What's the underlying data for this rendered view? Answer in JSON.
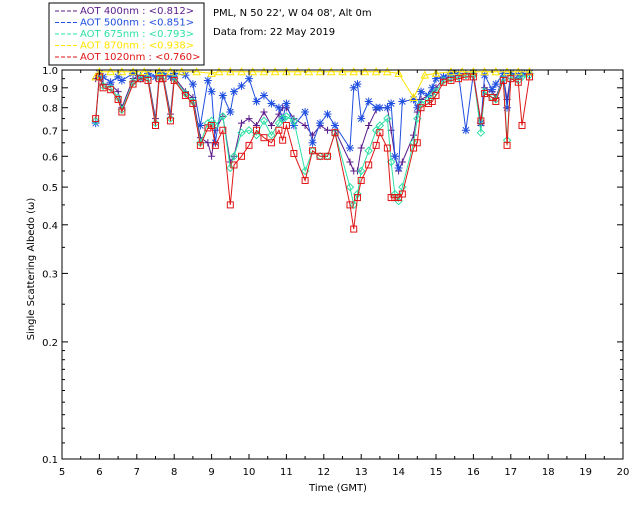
{
  "header": {
    "location": "PML, N 50 22', W 04 08', Alt 0m",
    "date": "Data from: 22 May 2019"
  },
  "chart_data": {
    "type": "line",
    "xlabel": "Time (GMT)",
    "ylabel": "Single Scattering Albedo (ω)",
    "xlim": [
      5,
      20
    ],
    "ylim": [
      0.1,
      1.0
    ],
    "y_scale": "log",
    "x_ticks": [
      "5",
      "6",
      "7",
      "8",
      "9",
      "10",
      "11",
      "12",
      "13",
      "14",
      "15",
      "16",
      "17",
      "18",
      "19",
      "20"
    ],
    "y_ticks": [
      "0.1",
      "0.2",
      "0.3",
      "0.4",
      "0.5",
      "0.6",
      "0.7",
      "0.8",
      "0.9",
      "1.0"
    ],
    "legend_position": "top-left",
    "series": [
      {
        "name": "AOT  400nm : <0.812>",
        "color": "#5a1b8a",
        "marker": "plus",
        "x": [
          5.9,
          6.0,
          6.1,
          6.3,
          6.5,
          6.6,
          6.9,
          7.1,
          7.3,
          7.5,
          7.6,
          7.7,
          7.9,
          8.0,
          8.3,
          8.5,
          8.7,
          8.9,
          9.0,
          9.1,
          9.3,
          9.5,
          9.6,
          9.8,
          10.0,
          10.2,
          10.4,
          10.6,
          10.8,
          10.9,
          11.0,
          11.2,
          11.5,
          11.7,
          11.9,
          12.1,
          12.3,
          12.7,
          12.8,
          12.9,
          13.0,
          13.2,
          13.4,
          13.5,
          13.7,
          13.8,
          13.9,
          14.0,
          14.1,
          14.4,
          14.5,
          14.6,
          14.8,
          14.9,
          15.0,
          15.2,
          15.4,
          15.6,
          15.8,
          16.0,
          16.2,
          16.3,
          16.5,
          16.6,
          16.8,
          16.9,
          17.0,
          17.2,
          17.3,
          17.5
        ],
        "y": [
          0.95,
          0.97,
          0.92,
          0.92,
          0.88,
          0.8,
          0.95,
          0.97,
          0.96,
          0.75,
          0.97,
          0.97,
          0.77,
          0.96,
          0.88,
          0.85,
          0.67,
          0.65,
          0.6,
          0.7,
          0.76,
          0.58,
          0.6,
          0.73,
          0.75,
          0.72,
          0.78,
          0.72,
          0.77,
          0.8,
          0.8,
          0.75,
          0.72,
          0.68,
          0.72,
          0.7,
          0.7,
          0.58,
          0.55,
          0.55,
          0.63,
          0.72,
          0.79,
          0.8,
          0.8,
          0.7,
          0.6,
          0.55,
          0.58,
          0.68,
          0.78,
          0.84,
          0.86,
          0.88,
          0.9,
          0.95,
          0.96,
          0.97,
          0.98,
          0.98,
          0.72,
          0.9,
          0.88,
          0.85,
          0.96,
          0.84,
          0.97,
          0.95,
          0.97,
          0.98
        ]
      },
      {
        "name": "AOT  500nm : <0.851>",
        "color": "#1f4fe0",
        "marker": "asterisk",
        "x": [
          5.9,
          6.0,
          6.1,
          6.3,
          6.5,
          6.6,
          6.9,
          7.1,
          7.3,
          7.5,
          7.6,
          7.7,
          7.9,
          8.0,
          8.3,
          8.5,
          8.7,
          8.9,
          9.0,
          9.1,
          9.3,
          9.5,
          9.6,
          9.8,
          10.0,
          10.2,
          10.4,
          10.6,
          10.8,
          10.9,
          11.0,
          11.2,
          11.5,
          11.7,
          11.9,
          12.1,
          12.3,
          12.7,
          12.8,
          12.9,
          13.0,
          13.2,
          13.4,
          13.5,
          13.7,
          13.8,
          13.9,
          14.0,
          14.1,
          14.4,
          14.5,
          14.6,
          14.8,
          14.9,
          15.0,
          15.2,
          15.4,
          15.6,
          15.8,
          16.0,
          16.2,
          16.3,
          16.5,
          16.6,
          16.8,
          16.9,
          17.0,
          17.2,
          17.3,
          17.5
        ],
        "y": [
          0.73,
          0.98,
          0.96,
          0.93,
          0.96,
          0.94,
          0.98,
          0.95,
          0.98,
          0.96,
          0.98,
          0.98,
          0.96,
          0.98,
          0.97,
          0.92,
          0.72,
          0.94,
          0.88,
          0.65,
          0.86,
          0.78,
          0.88,
          0.91,
          0.95,
          0.83,
          0.86,
          0.82,
          0.8,
          0.75,
          0.82,
          0.72,
          0.78,
          0.65,
          0.73,
          0.77,
          0.72,
          0.63,
          0.9,
          0.92,
          0.75,
          0.83,
          0.8,
          0.8,
          0.8,
          0.82,
          0.6,
          0.56,
          0.83,
          0.84,
          0.8,
          0.88,
          0.86,
          0.9,
          0.95,
          0.96,
          0.98,
          0.98,
          0.7,
          0.98,
          0.73,
          0.97,
          0.89,
          0.92,
          0.98,
          0.8,
          0.98,
          0.97,
          0.98,
          0.98
        ]
      },
      {
        "name": "AOT  675nm : <0.793>",
        "color": "#2ee0a5",
        "marker": "diamond",
        "x": [
          5.9,
          6.0,
          6.1,
          6.3,
          6.5,
          6.6,
          6.9,
          7.1,
          7.3,
          7.5,
          7.6,
          7.7,
          7.9,
          8.0,
          8.3,
          8.5,
          8.7,
          8.9,
          9.0,
          9.1,
          9.3,
          9.5,
          9.6,
          9.8,
          10.0,
          10.2,
          10.4,
          10.6,
          10.8,
          10.9,
          11.0,
          11.2,
          11.5,
          11.7,
          11.9,
          12.1,
          12.3,
          12.7,
          12.8,
          12.9,
          13.0,
          13.2,
          13.4,
          13.5,
          13.7,
          13.8,
          13.9,
          14.0,
          14.1,
          14.4,
          14.5,
          14.6,
          14.8,
          14.9,
          15.0,
          15.2,
          15.4,
          15.6,
          15.8,
          16.0,
          16.2,
          16.3,
          16.5,
          16.6,
          16.8,
          16.9,
          17.0,
          17.2,
          17.3,
          17.5
        ],
        "y": [
          0.74,
          0.96,
          0.91,
          0.9,
          0.85,
          0.79,
          0.93,
          0.96,
          0.95,
          0.73,
          0.96,
          0.96,
          0.75,
          0.95,
          0.87,
          0.83,
          0.65,
          0.73,
          0.74,
          0.72,
          0.76,
          0.56,
          0.6,
          0.69,
          0.7,
          0.68,
          0.74,
          0.68,
          0.73,
          0.75,
          0.76,
          0.74,
          0.55,
          0.62,
          0.6,
          0.6,
          0.69,
          0.5,
          0.45,
          0.48,
          0.55,
          0.62,
          0.7,
          0.72,
          0.75,
          0.58,
          0.48,
          0.46,
          0.5,
          0.65,
          0.75,
          0.82,
          0.84,
          0.86,
          0.88,
          0.94,
          0.95,
          0.96,
          0.97,
          0.97,
          0.69,
          0.88,
          0.85,
          0.84,
          0.95,
          0.66,
          0.96,
          0.94,
          0.96,
          0.97
        ]
      },
      {
        "name": "AOT  870nm : <0.938>",
        "color": "#ffe400",
        "marker": "triangle",
        "x": [
          5.9,
          6.0,
          6.3,
          6.6,
          6.9,
          7.2,
          7.6,
          7.9,
          8.2,
          8.6,
          9.0,
          9.2,
          9.5,
          9.8,
          10.1,
          10.4,
          10.7,
          11.0,
          11.3,
          11.6,
          11.9,
          12.2,
          12.5,
          12.8,
          13.1,
          13.4,
          13.7,
          14.0,
          14.4,
          14.7,
          15.0,
          15.4,
          15.7,
          16.0,
          16.3,
          16.6,
          16.9,
          17.2,
          17.5
        ],
        "y": [
          0.96,
          0.99,
          0.99,
          0.99,
          0.99,
          0.99,
          0.99,
          0.99,
          0.99,
          0.99,
          0.98,
          0.99,
          0.99,
          0.99,
          0.99,
          0.99,
          0.99,
          0.99,
          0.99,
          0.99,
          0.99,
          0.99,
          0.99,
          0.99,
          0.99,
          0.99,
          0.99,
          0.98,
          0.85,
          0.97,
          0.98,
          0.99,
          0.99,
          0.99,
          0.99,
          0.99,
          0.99,
          0.99,
          0.99
        ]
      },
      {
        "name": "AOT 1020nm : <0.760>",
        "color": "#e01616",
        "marker": "square",
        "x": [
          5.9,
          6.0,
          6.1,
          6.3,
          6.5,
          6.6,
          6.9,
          7.1,
          7.3,
          7.5,
          7.6,
          7.7,
          7.9,
          8.0,
          8.3,
          8.5,
          8.7,
          8.9,
          9.0,
          9.1,
          9.3,
          9.5,
          9.6,
          9.8,
          10.0,
          10.2,
          10.4,
          10.6,
          10.8,
          10.9,
          11.0,
          11.2,
          11.5,
          11.7,
          11.9,
          12.1,
          12.3,
          12.7,
          12.8,
          12.9,
          13.0,
          13.2,
          13.4,
          13.5,
          13.7,
          13.8,
          13.9,
          14.0,
          14.1,
          14.4,
          14.5,
          14.6,
          14.8,
          14.9,
          15.0,
          15.2,
          15.4,
          15.6,
          15.8,
          16.0,
          16.2,
          16.3,
          16.5,
          16.6,
          16.8,
          16.9,
          17.0,
          17.2,
          17.3,
          17.5
        ],
        "y": [
          0.75,
          0.96,
          0.9,
          0.89,
          0.84,
          0.78,
          0.92,
          0.95,
          0.94,
          0.72,
          0.95,
          0.95,
          0.74,
          0.94,
          0.86,
          0.82,
          0.64,
          0.71,
          0.72,
          0.64,
          0.7,
          0.45,
          0.57,
          0.6,
          0.64,
          0.7,
          0.67,
          0.65,
          0.7,
          0.66,
          0.72,
          0.61,
          0.52,
          0.62,
          0.6,
          0.6,
          0.69,
          0.45,
          0.39,
          0.47,
          0.52,
          0.57,
          0.64,
          0.69,
          0.63,
          0.47,
          0.47,
          0.47,
          0.48,
          0.63,
          0.65,
          0.8,
          0.82,
          0.83,
          0.86,
          0.93,
          0.94,
          0.95,
          0.96,
          0.96,
          0.74,
          0.87,
          0.85,
          0.83,
          0.94,
          0.64,
          0.95,
          0.93,
          0.72,
          0.96
        ]
      }
    ]
  }
}
